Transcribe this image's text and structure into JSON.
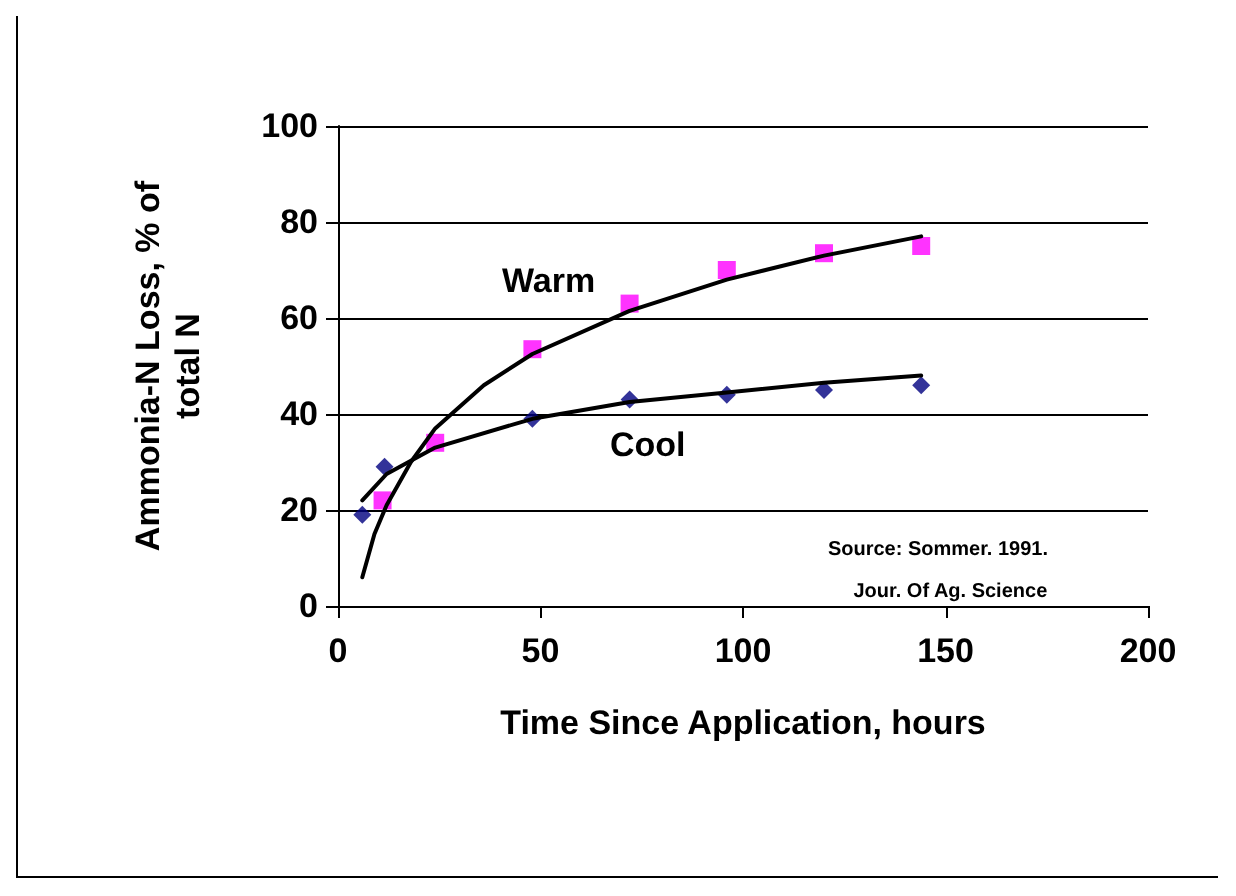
{
  "chart_data": {
    "type": "scatter",
    "xlabel": "Time Since Application, hours",
    "ylabel": "Ammonia-N Loss, % of\ntotal N",
    "xlim": [
      0,
      200
    ],
    "xticks": [
      0,
      50,
      100,
      150,
      200
    ],
    "ylim": [
      0,
      100
    ],
    "yticks": [
      0,
      20,
      40,
      60,
      80,
      100
    ],
    "grid": "y",
    "series": [
      {
        "marker": "square",
        "color": "#ff00ff",
        "x": [
          11,
          24,
          48,
          72,
          96,
          120,
          144
        ],
        "values": [
          22,
          34,
          53.5,
          63,
          70,
          73.5,
          75
        ]
      },
      {
        "marker": "diamond",
        "color": "#000080",
        "x": [
          6,
          11.5,
          48,
          72,
          96,
          120,
          144
        ],
        "values": [
          19,
          29,
          39,
          43,
          44,
          45,
          46
        ]
      },
      {
        "type": "line",
        "marker": "none",
        "color": "#000000",
        "x": [
          6,
          9,
          12,
          18,
          24,
          36,
          48,
          72,
          96,
          120,
          144
        ],
        "values": [
          6,
          15,
          21,
          30,
          37,
          46,
          52.5,
          61.5,
          68,
          73,
          77
        ]
      },
      {
        "type": "line",
        "marker": "none",
        "color": "#000000",
        "x": [
          6,
          12,
          24,
          48,
          72,
          96,
          120,
          144
        ],
        "values": [
          22,
          27.5,
          33,
          39,
          42.5,
          44.5,
          46.5,
          48
        ]
      }
    ],
    "annotations": [
      "Warm",
      "Cool",
      "Source: Sommer. 1991.",
      "Jour. Of Ag. Science"
    ]
  }
}
